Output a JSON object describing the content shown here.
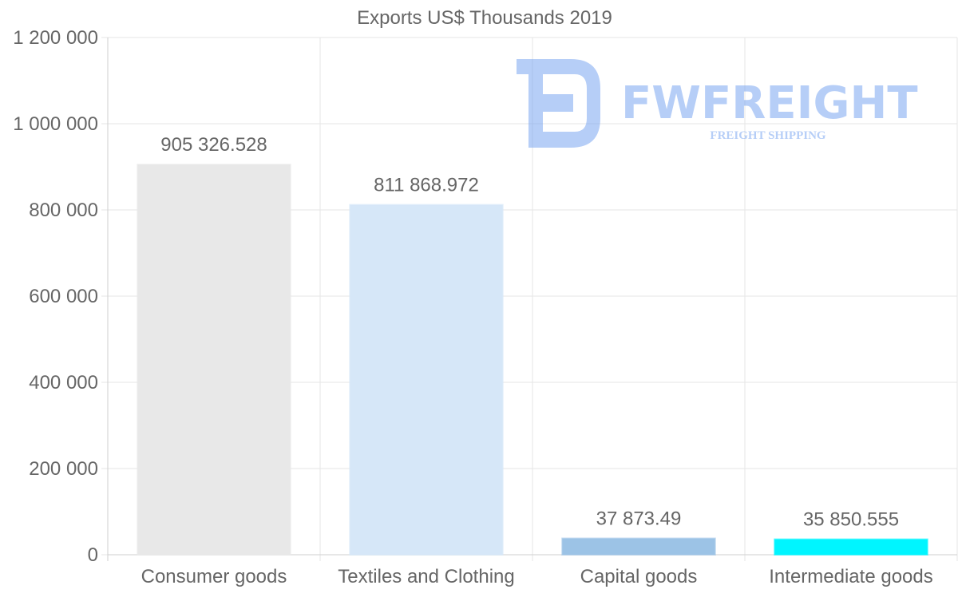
{
  "chart_data": {
    "type": "bar",
    "title": "Exports US$ Thousands 2019",
    "xlabel": "",
    "ylabel": "",
    "ylim": [
      0,
      1200000
    ],
    "grid": true,
    "categories": [
      "Consumer goods",
      "Textiles and Clothing",
      "Capital goods",
      "Intermediate goods"
    ],
    "values": [
      905326.528,
      811868.972,
      37873.49,
      35850.555
    ],
    "value_labels": [
      "905 326.528",
      "811 868.972",
      "37 873.49",
      "35 850.555"
    ],
    "bar_colors": [
      "#e8e8e8",
      "#d6e7f8",
      "#9cc3e6",
      "#00f5ff"
    ],
    "y_ticks": [
      0,
      200000,
      400000,
      600000,
      800000,
      1000000,
      1200000
    ],
    "y_tick_labels": [
      "0",
      "200 000",
      "400 000",
      "600 000",
      "800 000",
      "1 000 000",
      "1 200 000"
    ]
  },
  "watermark": {
    "brand": "FWFREIGHT",
    "tagline": "FREIGHT SHIPPING",
    "color": "#6f9ef0"
  }
}
